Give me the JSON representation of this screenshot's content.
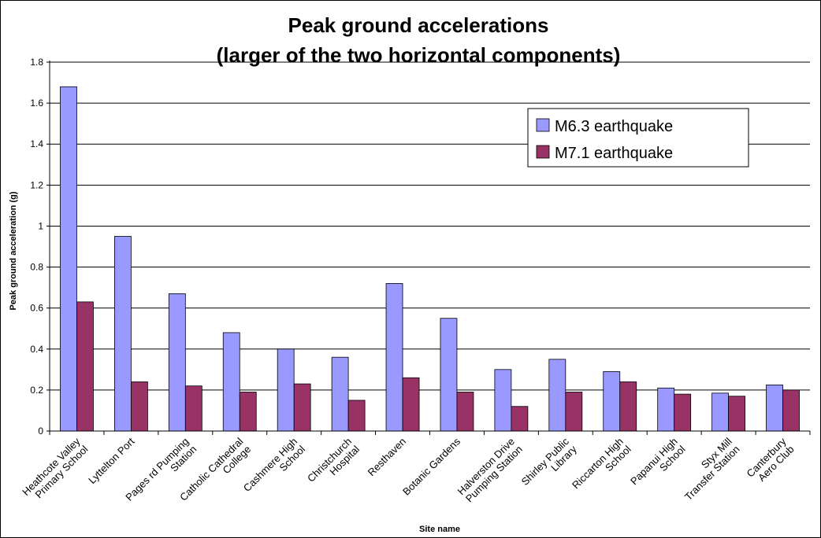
{
  "chart_data": {
    "type": "bar",
    "title": [
      "Peak ground accelerations",
      "(larger of the two horizontal components)"
    ],
    "xlabel": "Site name",
    "ylabel": "Peak ground acceleration (g)",
    "ylim": [
      0,
      1.8
    ],
    "yticks": [
      "0",
      "0.2",
      "0.4",
      "0.6",
      "0.8",
      "1",
      "1.2",
      "1.4",
      "1.6",
      "1.8"
    ],
    "grid": true,
    "legend_position": "top-right",
    "categories": [
      [
        "Heathcote Valley",
        "Primary School"
      ],
      [
        "Lyttelton Port"
      ],
      [
        "Pages rd Pumping",
        "Station"
      ],
      [
        "Catholic Cathedral",
        "College"
      ],
      [
        "Cashmere High",
        "School"
      ],
      [
        "Christchurch",
        "Hospital"
      ],
      [
        "Resthaven"
      ],
      [
        "Botanic Gardens"
      ],
      [
        "Halverston Drive",
        "Pumping Station"
      ],
      [
        "Shirley Public",
        "Library"
      ],
      [
        "Riccarton High",
        "School"
      ],
      [
        "Papanui High",
        "School"
      ],
      [
        "Styx Mill",
        "Transfer Station"
      ],
      [
        "Canterbury",
        "Aero Club"
      ]
    ],
    "series": [
      {
        "name": "M6.3 earthquake",
        "color": "#9999ff",
        "values": [
          1.68,
          0.95,
          0.67,
          0.48,
          0.4,
          0.36,
          0.72,
          0.55,
          0.3,
          0.35,
          0.29,
          0.21,
          0.185,
          0.225
        ]
      },
      {
        "name": "M7.1 earthquake",
        "color": "#993366",
        "values": [
          0.63,
          0.24,
          0.22,
          0.19,
          0.23,
          0.15,
          0.26,
          0.19,
          0.12,
          0.19,
          0.24,
          0.18,
          0.17,
          0.2
        ]
      }
    ]
  }
}
